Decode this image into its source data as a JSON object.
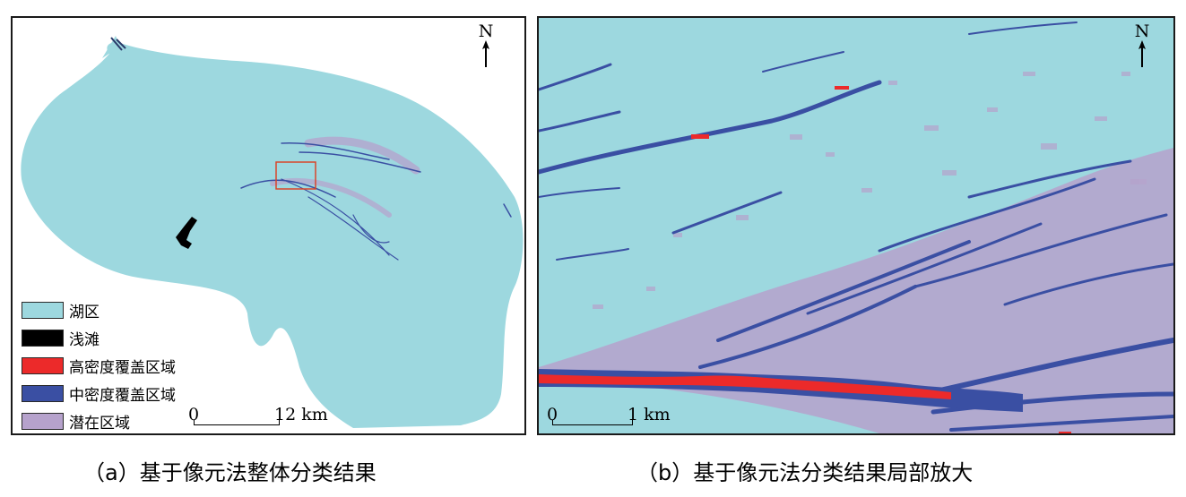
{
  "colors": {
    "lake": "#9dd8df",
    "shoal": "#000000",
    "high_density": "#ec2a2a",
    "medium_density": "#3a4fa3",
    "potential": "#b6a2cc",
    "zoom_box": "#d9452a"
  },
  "panel_a": {
    "north_label": "N",
    "legend": [
      {
        "label": "湖区",
        "color_key": "lake"
      },
      {
        "label": "浅滩",
        "color_key": "shoal"
      },
      {
        "label": "高密度覆盖区域",
        "color_key": "high_density"
      },
      {
        "label": "中密度覆盖区域",
        "color_key": "medium_density"
      },
      {
        "label": "潜在区域",
        "color_key": "potential"
      }
    ],
    "scalebar": {
      "start": "0",
      "end": "12 km"
    },
    "caption": "（a）基于像元法整体分类结果"
  },
  "panel_b": {
    "north_label": "N",
    "scalebar": {
      "start": "0",
      "end": "1 km"
    },
    "caption": "（b）基于像元法分类结果局部放大"
  }
}
